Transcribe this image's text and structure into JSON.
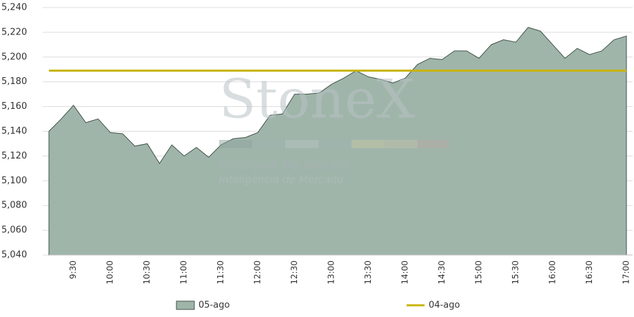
{
  "chart_data": {
    "type": "area",
    "categories": [
      null,
      null,
      "9:30",
      null,
      null,
      "10:00",
      null,
      null,
      "10:30",
      null,
      null,
      "11:00",
      null,
      null,
      "11:30",
      null,
      null,
      "12:00",
      null,
      null,
      "12:30",
      null,
      null,
      "13:00",
      null,
      null,
      "13:30",
      null,
      null,
      "14:00",
      null,
      null,
      "14:30",
      null,
      null,
      "15:00",
      null,
      null,
      "15:30",
      null,
      null,
      "16:00",
      null,
      null,
      "16:30",
      null,
      null,
      "17:00"
    ],
    "series": [
      {
        "name": "05-ago",
        "style": "area",
        "color": "#a0b5aa",
        "line_color": "#3f5249",
        "values": [
          5140,
          5150,
          5161,
          5147,
          5150,
          5139,
          5138,
          5128,
          5130,
          5114,
          5129,
          5120,
          5127,
          5119,
          5129,
          5134,
          5135,
          5139,
          5153,
          5154,
          5170,
          5170,
          5171,
          5178,
          5183,
          5189,
          5184,
          5182,
          5179,
          5183,
          5194,
          5199,
          5198,
          5205,
          5205,
          5199,
          5210,
          5214,
          5212,
          5224,
          5221,
          5210,
          5199,
          5207,
          5202,
          5205,
          5214,
          5217
        ]
      },
      {
        "name": "04-ago",
        "style": "line",
        "color": "#c8b400",
        "values": [
          5189,
          5189,
          5189,
          5189,
          5189,
          5189,
          5189,
          5189,
          5189,
          5189,
          5189,
          5189,
          5189,
          5189,
          5189,
          5189,
          5189,
          5189,
          5189,
          5189,
          5189,
          5189,
          5189,
          5189,
          5189,
          5189,
          5189,
          5189,
          5189,
          5189,
          5189,
          5189,
          5189,
          5189,
          5189,
          5189,
          5189,
          5189,
          5189,
          5189,
          5189,
          5189,
          5189,
          5189,
          5189,
          5189,
          5189,
          5189
        ]
      }
    ],
    "ylim": [
      5040,
      5240
    ],
    "yticks": [
      {
        "value": 5040,
        "label": "5,040"
      },
      {
        "value": 5060,
        "label": "5,060"
      },
      {
        "value": 5080,
        "label": "5,080"
      },
      {
        "value": 5100,
        "label": "5,100"
      },
      {
        "value": 5120,
        "label": "5,120"
      },
      {
        "value": 5140,
        "label": "5,140"
      },
      {
        "value": 5160,
        "label": "5,160"
      },
      {
        "value": 5180,
        "label": "5,180"
      },
      {
        "value": 5200,
        "label": "5,200"
      },
      {
        "value": 5220,
        "label": "5,220"
      },
      {
        "value": 5240,
        "label": "5,240"
      }
    ],
    "grid": true,
    "legend": "bottom",
    "watermark": {
      "brand": "StoneX",
      "company": "FCSTONE DO BRASIL",
      "tagline": "Inteligência de Mercado"
    }
  }
}
